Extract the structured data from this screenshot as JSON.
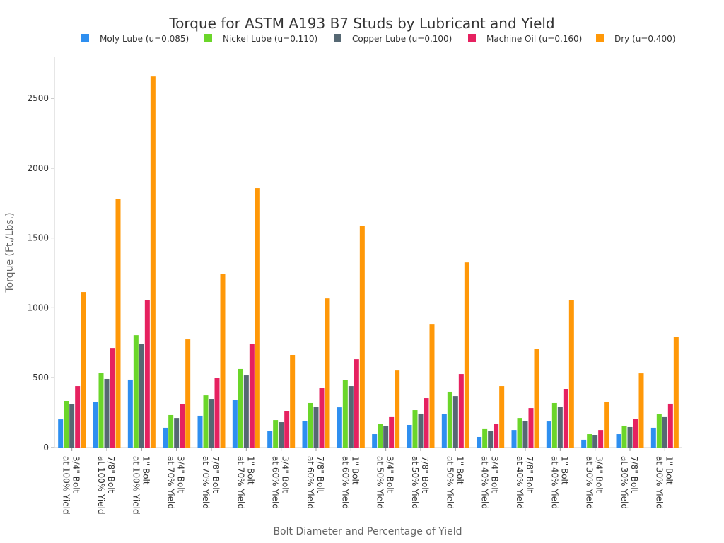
{
  "chart_data": {
    "type": "bar",
    "title": "Torque for ASTM A193 B7 Studs by Lubricant and Yield",
    "xlabel": "Bolt Diameter and Percentage of Yield",
    "ylabel": "Torque (Ft./Lbs.)",
    "ylim": [
      0,
      2800
    ],
    "yticks": [
      0,
      500,
      1000,
      1500,
      2000,
      2500
    ],
    "grid": false,
    "legend_position": "top",
    "categories": [
      [
        "3/4\" Bolt",
        "at 100% Yield"
      ],
      [
        "7/8\" Bolt",
        "at 100% Yield"
      ],
      [
        "1\" Bolt",
        "at 100% Yield"
      ],
      [
        "3/4\" Bolt",
        "at 70% Yield"
      ],
      [
        "7/8\" Bolt",
        "at 70% Yield"
      ],
      [
        "1\" Bolt",
        "at 70% Yield"
      ],
      [
        "3/4\" Bolt",
        "at 60% Yield"
      ],
      [
        "7/8\" Bolt",
        "at 60% Yield"
      ],
      [
        "1\" Bolt",
        "at 60% Yield"
      ],
      [
        "3/4\" Bolt",
        "at 50% Yield"
      ],
      [
        "7/8\" Bolt",
        "at 50% Yield"
      ],
      [
        "1\" Bolt",
        "at 50% Yield"
      ],
      [
        "3/4\" Bolt",
        "at 40% Yield"
      ],
      [
        "7/8\" Bolt",
        "at 40% Yield"
      ],
      [
        "1\" Bolt",
        "at 40% Yield"
      ],
      [
        "3/4\" Bolt",
        "at 30% Yield"
      ],
      [
        "7/8\" Bolt",
        "at 30% Yield"
      ],
      [
        "1\" Bolt",
        "at 30% Yield"
      ]
    ],
    "series": [
      {
        "name": "Moly Lube (u=0.085)",
        "color": "#2e8ff0",
        "values": [
          202,
          324,
          486,
          142,
          228,
          339,
          121,
          192,
          288,
          96,
          162,
          238,
          76,
          126,
          187,
          56,
          96,
          142
        ]
      },
      {
        "name": "Nickel Lube (u=0.110)",
        "color": "#6bd62a",
        "values": [
          334,
          536,
          804,
          233,
          374,
          562,
          197,
          319,
          481,
          167,
          268,
          400,
          132,
          212,
          319,
          96,
          157,
          238
        ]
      },
      {
        "name": "Copper Lube (u=0.100)",
        "color": "#566873",
        "values": [
          309,
          491,
          739,
          212,
          344,
          516,
          182,
          293,
          440,
          152,
          243,
          369,
          121,
          192,
          293,
          91,
          147,
          218
        ]
      },
      {
        "name": "Machine Oil (u=0.160)",
        "color": "#e62160",
        "values": [
          440,
          713,
          1057,
          309,
          496,
          739,
          263,
          425,
          632,
          218,
          354,
          526,
          172,
          283,
          420,
          126,
          207,
          314
        ]
      },
      {
        "name": "Dry (u=0.400)",
        "color": "#ff9808",
        "values": [
          1113,
          1781,
          2656,
          774,
          1244,
          1857,
          663,
          1067,
          1588,
          551,
          885,
          1325,
          440,
          708,
          1057,
          329,
          531,
          794
        ]
      }
    ]
  }
}
